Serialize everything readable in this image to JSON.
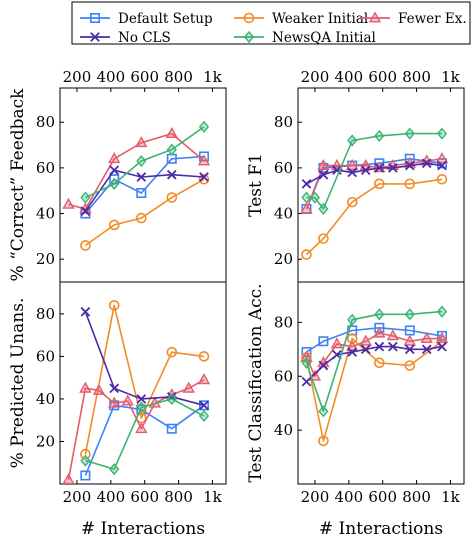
{
  "legend": [
    {
      "label": "Default Setup",
      "color": "#3b82f6",
      "marker": "square"
    },
    {
      "label": "Weaker Initial",
      "color": "#f28c28",
      "marker": "circle"
    },
    {
      "label": "Fewer Ex.",
      "color": "#e35d6a",
      "marker": "triangle"
    },
    {
      "label": "No CLS",
      "color": "#4b2aa8",
      "marker": "x"
    },
    {
      "label": "NewsQA Initial",
      "color": "#3cb371",
      "marker": "diamond"
    }
  ],
  "chart_data": [
    {
      "type": "line",
      "ylabel": "% “Correct” Feedback",
      "xlabel": "",
      "x_ticks_top": [
        "200",
        "400",
        "600",
        "800",
        "1k"
      ],
      "x_ticks_bottom": [],
      "xlim": [
        100,
        1080
      ],
      "ylim": [
        10,
        95
      ],
      "y_ticks": [
        20,
        40,
        60,
        80
      ],
      "series": [
        {
          "name": "Default Setup",
          "x": [
            250,
            420,
            580,
            760,
            950
          ],
          "y": [
            40,
            55,
            49,
            64,
            65
          ]
        },
        {
          "name": "Weaker Initial",
          "x": [
            250,
            420,
            580,
            760,
            950
          ],
          "y": [
            26,
            35,
            38,
            47,
            55
          ]
        },
        {
          "name": "Fewer Ex.",
          "x": [
            150,
            250,
            420,
            580,
            760,
            950
          ],
          "y": [
            44,
            42,
            64,
            71,
            75,
            63
          ]
        },
        {
          "name": "No CLS",
          "x": [
            250,
            420,
            580,
            760,
            950
          ],
          "y": [
            41,
            59,
            56,
            57,
            56
          ]
        },
        {
          "name": "NewsQA Initial",
          "x": [
            250,
            420,
            580,
            760,
            950
          ],
          "y": [
            47,
            53,
            63,
            68,
            78
          ]
        }
      ]
    },
    {
      "type": "line",
      "ylabel": "Test F1",
      "xlabel": "",
      "x_ticks_top": [
        "200",
        "400",
        "600",
        "800",
        "1k"
      ],
      "x_ticks_bottom": [],
      "xlim": [
        100,
        1080
      ],
      "ylim": [
        10,
        95
      ],
      "y_ticks": [
        20,
        40,
        60,
        80
      ],
      "series": [
        {
          "name": "Default Setup",
          "x": [
            150,
            250,
            420,
            580,
            760,
            950
          ],
          "y": [
            42,
            60,
            61,
            62,
            64,
            62
          ]
        },
        {
          "name": "Weaker Initial",
          "x": [
            150,
            250,
            420,
            580,
            760,
            950
          ],
          "y": [
            22,
            29,
            45,
            53,
            53,
            55
          ]
        },
        {
          "name": "Fewer Ex.",
          "x": [
            150,
            250,
            330,
            420,
            500,
            580,
            660,
            760,
            860,
            950
          ],
          "y": [
            42,
            61,
            61,
            61,
            61,
            60,
            61,
            62,
            63,
            64
          ]
        },
        {
          "name": "No CLS",
          "x": [
            150,
            250,
            330,
            420,
            500,
            580,
            660,
            760,
            860,
            950
          ],
          "y": [
            53,
            57,
            59,
            58,
            59,
            60,
            60,
            61,
            62,
            61
          ]
        },
        {
          "name": "NewsQA Initial",
          "x": [
            150,
            200,
            250,
            420,
            580,
            760,
            950
          ],
          "y": [
            47,
            47,
            42,
            72,
            74,
            75,
            75
          ]
        }
      ]
    },
    {
      "type": "line",
      "ylabel": "% Predicted Unans.",
      "xlabel": "# Interactions",
      "x_ticks_top": [],
      "x_ticks_bottom": [
        "200",
        "400",
        "600",
        "800",
        "1k"
      ],
      "xlim": [
        100,
        1080
      ],
      "ylim": [
        0,
        95
      ],
      "y_ticks": [
        20,
        40,
        60,
        80
      ],
      "series": [
        {
          "name": "Default Setup",
          "x": [
            250,
            420,
            580,
            760,
            950
          ],
          "y": [
            4,
            37,
            35,
            26,
            37
          ]
        },
        {
          "name": "Weaker Initial",
          "x": [
            250,
            420,
            580,
            760,
            950
          ],
          "y": [
            14,
            84,
            31,
            62,
            60
          ]
        },
        {
          "name": "Fewer Ex.",
          "x": [
            150,
            250,
            330,
            420,
            500,
            580,
            660,
            760,
            860,
            950
          ],
          "y": [
            2,
            45,
            44,
            38,
            39,
            26,
            38,
            42,
            45,
            49
          ]
        },
        {
          "name": "No CLS",
          "x": [
            250,
            420,
            580,
            760,
            950
          ],
          "y": [
            81,
            45,
            40,
            41,
            37
          ]
        },
        {
          "name": "NewsQA Initial",
          "x": [
            250,
            420,
            580,
            760,
            950
          ],
          "y": [
            11,
            7,
            36,
            40,
            32
          ]
        }
      ]
    },
    {
      "type": "line",
      "ylabel": "Test Classification Acc.",
      "xlabel": "# Interactions",
      "x_ticks_top": [],
      "x_ticks_bottom": [
        "200",
        "400",
        "600",
        "800",
        "1k"
      ],
      "xlim": [
        100,
        1080
      ],
      "ylim": [
        20,
        95
      ],
      "y_ticks": [
        40,
        60,
        80
      ],
      "series": [
        {
          "name": "Default Setup",
          "x": [
            150,
            250,
            420,
            580,
            760,
            950
          ],
          "y": [
            69,
            73,
            77,
            78,
            77,
            75
          ]
        },
        {
          "name": "Weaker Initial",
          "x": [
            150,
            250,
            420,
            580,
            760,
            950
          ],
          "y": [
            67,
            36,
            74,
            65,
            64,
            73
          ]
        },
        {
          "name": "Fewer Ex.",
          "x": [
            150,
            200,
            250,
            330,
            420,
            500,
            580,
            660,
            760,
            860,
            950
          ],
          "y": [
            67,
            60,
            65,
            72,
            71,
            73,
            76,
            75,
            73,
            74,
            74
          ]
        },
        {
          "name": "No CLS",
          "x": [
            150,
            250,
            330,
            420,
            500,
            580,
            660,
            760,
            860,
            950
          ],
          "y": [
            58,
            64,
            68,
            69,
            70,
            71,
            71,
            70,
            70,
            71
          ]
        },
        {
          "name": "NewsQA Initial",
          "x": [
            150,
            250,
            420,
            580,
            760,
            950
          ],
          "y": [
            65,
            47,
            81,
            83,
            83,
            84
          ]
        }
      ]
    }
  ]
}
